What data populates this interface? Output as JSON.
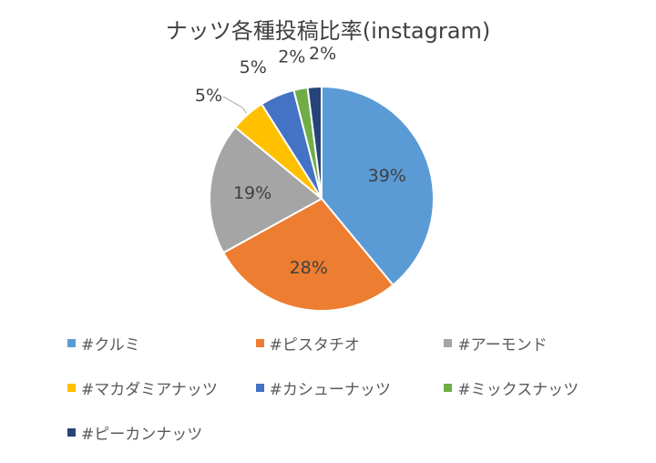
{
  "chart_data": {
    "type": "pie",
    "title": "ナッツ各種投稿比率(instagram)",
    "categories": [
      "#クルミ",
      "#ピスタチオ",
      "#アーモンド",
      "#マカダミアナッツ",
      "#カシューナッツ",
      "#ミックスナッツ",
      "#ピーカンナッツ"
    ],
    "values": [
      39,
      28,
      19,
      5,
      5,
      2,
      2
    ],
    "labels": [
      "39%",
      "28%",
      "19%",
      "5%",
      "5%",
      "2%",
      "2%"
    ],
    "colors": [
      "#5B9BD5",
      "#ED7D31",
      "#A5A5A5",
      "#FFC000",
      "#4472C4",
      "#70AD47",
      "#264478"
    ],
    "legend_position": "bottom"
  }
}
